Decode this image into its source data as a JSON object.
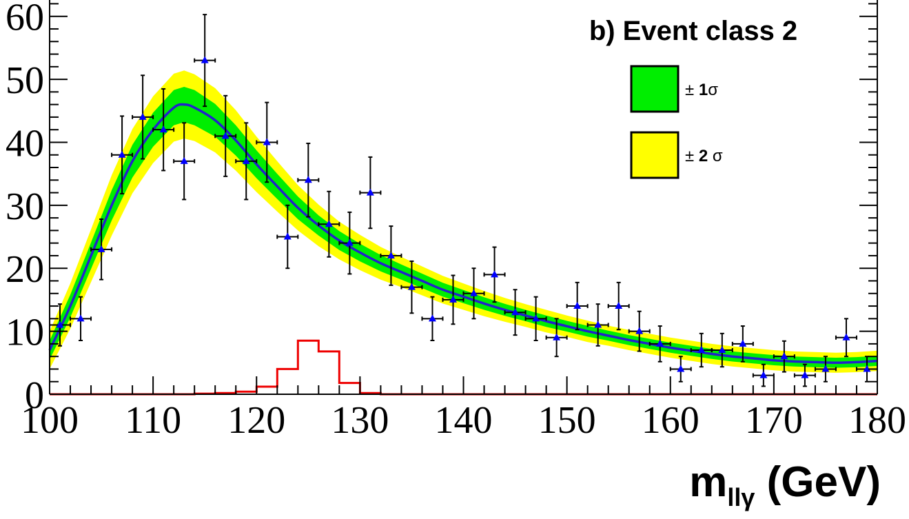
{
  "chart_data": {
    "type": "scatter",
    "title": "b) Event class 2",
    "xlabel": {
      "main": "m",
      "subscript": "llγ",
      "unit": "(GeV)"
    },
    "ylabel": "",
    "xlim": [
      100,
      180
    ],
    "ylim": [
      0,
      65
    ],
    "x_ticks": [
      100,
      110,
      120,
      130,
      140,
      150,
      160,
      170,
      180
    ],
    "y_ticks": [
      0,
      10,
      20,
      30,
      40,
      50,
      60
    ],
    "x_tick_labels": [
      "100",
      "110",
      "120",
      "130",
      "140",
      "150",
      "160",
      "170",
      "180"
    ],
    "y_tick_labels": [
      "0",
      "10",
      "20",
      "30",
      "40",
      "50",
      "60"
    ],
    "grid": false,
    "legend_placement": "top-right",
    "legend": [
      {
        "label_prefix": "± ",
        "label_bold": "1",
        "label_suffix": "σ",
        "color": "#00ee00"
      },
      {
        "label_prefix": "± ",
        "label_bold": "2",
        "label_suffix": " σ",
        "color": "#ffff00"
      }
    ],
    "series": [
      {
        "kind": "data_points",
        "marker": "triangle",
        "color": "#0000ff",
        "x_halfwidth": 1,
        "x": [
          101,
          103,
          105,
          107,
          109,
          111,
          113,
          115,
          117,
          119,
          121,
          123,
          125,
          127,
          129,
          131,
          133,
          135,
          137,
          139,
          141,
          143,
          145,
          147,
          149,
          151,
          153,
          155,
          157,
          159,
          161,
          163,
          165,
          167,
          169,
          171,
          173,
          175,
          177,
          179
        ],
        "y": [
          11,
          12,
          23,
          38,
          44,
          42,
          37,
          53,
          41,
          37,
          40,
          25,
          34,
          27,
          24,
          32,
          22,
          17,
          12,
          15,
          16,
          19,
          13,
          12,
          9,
          14,
          11,
          14,
          10,
          8,
          4,
          7,
          7,
          8,
          3,
          6,
          3,
          4,
          9,
          4
        ]
      },
      {
        "kind": "fit_curve",
        "color": "#2222cc",
        "x": [
          100,
          102,
          104,
          106,
          108,
          110,
          112,
          113,
          114,
          116,
          118,
          120,
          122,
          124,
          126,
          128,
          130,
          132,
          134,
          136,
          138,
          140,
          142,
          144,
          146,
          148,
          150,
          152,
          154,
          156,
          158,
          160,
          162,
          164,
          166,
          168,
          170,
          172,
          174,
          176,
          178,
          180
        ],
        "y": [
          7,
          14,
          22,
          30,
          37,
          42,
          45.5,
          46,
          45.5,
          43.5,
          40.3,
          36.5,
          33,
          29.6,
          26.8,
          24.4,
          22.5,
          20.8,
          19.4,
          18,
          16.6,
          15.5,
          14.4,
          13.4,
          12.5,
          11.6,
          10.8,
          10,
          9.3,
          8.6,
          8,
          7.4,
          6.9,
          6.4,
          6,
          5.7,
          5.4,
          5.2,
          5.1,
          5,
          5.1,
          5.3
        ],
        "band_1sigma_halfwidth": [
          1.5,
          1.8,
          2.1,
          2.4,
          2.6,
          2.7,
          2.8,
          2.8,
          2.8,
          2.6,
          2.4,
          2.2,
          2,
          1.8,
          1.6,
          1.5,
          1.4,
          1.3,
          1.2,
          1.15,
          1.1,
          1.05,
          1,
          0.95,
          0.9,
          0.9,
          0.85,
          0.85,
          0.8,
          0.8,
          0.8,
          0.8,
          0.8,
          0.8,
          0.8,
          0.8,
          0.8,
          0.8,
          0.8,
          0.8,
          0.8,
          0.8
        ],
        "band_2sigma_halfwidth": [
          3,
          3.6,
          4.2,
          4.8,
          5.1,
          5.3,
          5.4,
          5.4,
          5.3,
          5.1,
          4.8,
          4.4,
          4,
          3.6,
          3.3,
          3,
          2.8,
          2.6,
          2.4,
          2.3,
          2.2,
          2.1,
          2,
          1.9,
          1.8,
          1.8,
          1.7,
          1.7,
          1.6,
          1.6,
          1.6,
          1.6,
          1.6,
          1.6,
          1.6,
          1.6,
          1.6,
          1.6,
          1.6,
          1.6,
          1.6,
          1.6
        ]
      },
      {
        "kind": "signal_histogram",
        "color": "#ee0000",
        "bin_edges": [
          100,
          102,
          104,
          106,
          108,
          110,
          112,
          114,
          116,
          118,
          120,
          122,
          124,
          126,
          128,
          130,
          132,
          134,
          136,
          138,
          140,
          142,
          144,
          146,
          148,
          150,
          152,
          154,
          156,
          158,
          160,
          162,
          164,
          166,
          168,
          170,
          172,
          174,
          176,
          178,
          180
        ],
        "values": [
          0,
          0,
          0,
          0,
          0,
          0,
          0,
          0.1,
          0.2,
          0.4,
          1.2,
          4,
          8.5,
          6.8,
          1.8,
          0.2,
          0,
          0,
          0,
          0,
          0,
          0,
          0,
          0,
          0,
          0,
          0,
          0,
          0,
          0,
          0,
          0,
          0,
          0,
          0,
          0,
          0,
          0,
          0,
          0
        ],
        "note": ""
      }
    ]
  }
}
